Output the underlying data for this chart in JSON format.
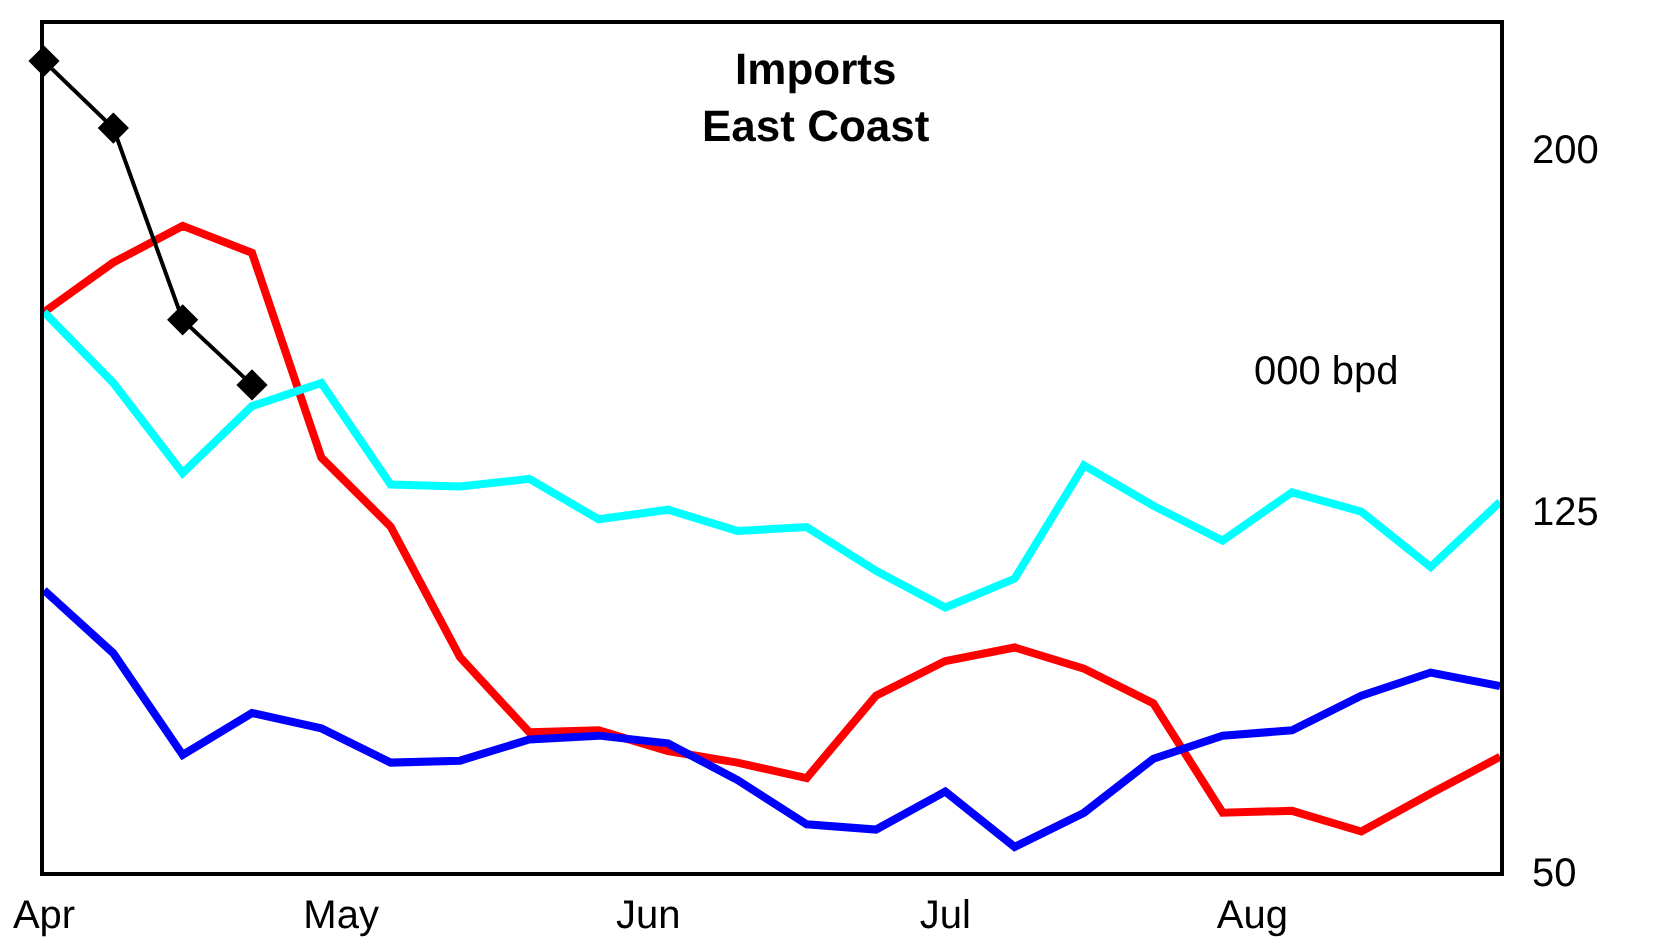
{
  "chart_data": {
    "type": "line",
    "title": "Imports\nEast Coast",
    "annotations": [
      "000 bpd"
    ],
    "x": [
      "--04-01",
      "--04-08",
      "--04-15",
      "--04-22",
      "--04-29",
      "--05-06",
      "--05-13",
      "--05-20",
      "--05-27",
      "--06-03",
      "--06-10",
      "--06-17",
      "--06-24",
      "--07-01",
      "--07-08",
      "--07-15",
      "--07-22",
      "--07-29",
      "--08-05",
      "--08-12",
      "--08-19",
      "--08-26"
    ],
    "xlim": [
      "--04-01",
      "--08-26"
    ],
    "xticks": [
      {
        "value": "--04-01",
        "label": "Apr"
      },
      {
        "value": "--05-01",
        "label": "May"
      },
      {
        "value": "--06-01",
        "label": "Jun"
      },
      {
        "value": "--07-01",
        "label": "Jul"
      },
      {
        "value": "--08-01",
        "label": "Aug"
      }
    ],
    "ylim": [
      50,
      226
    ],
    "yticks": [
      50,
      125,
      200
    ],
    "grid": false,
    "series": [
      {
        "color": "#ff0000",
        "marker": "none",
        "values": [
          166.2,
          176.5,
          184.1,
          178.5,
          136.0,
          121.7,
          94.6,
          79.0,
          79.4,
          75.1,
          72.7,
          69.5,
          86.6,
          93.8,
          96.6,
          92.2,
          85.0,
          62.3,
          62.7,
          58.4,
          66.3,
          73.9
        ]
      },
      {
        "color": "#00ffff",
        "marker": "none",
        "values": [
          166.2,
          151.5,
          132.8,
          146.7,
          151.5,
          130.4,
          130.0,
          131.6,
          123.2,
          125.2,
          120.8,
          121.6,
          112.5,
          104.9,
          110.9,
          134.4,
          126.0,
          118.8,
          128.8,
          124.8,
          113.3,
          126.8
        ]
      },
      {
        "color": "#0000ff",
        "marker": "none",
        "values": [
          108.5,
          95.4,
          74.3,
          83.0,
          79.8,
          72.7,
          73.1,
          77.5,
          78.3,
          76.7,
          69.1,
          59.9,
          58.8,
          66.7,
          55.2,
          62.3,
          73.5,
          78.3,
          79.4,
          86.6,
          91.4,
          88.6
        ]
      },
      {
        "color": "#000000",
        "marker": "diamond",
        "values": [
          218.3,
          204.4,
          164.6,
          151.1,
          null,
          null,
          null,
          null,
          null,
          null,
          null,
          null,
          null,
          null,
          null,
          null,
          null,
          null,
          null,
          null,
          null,
          null
        ]
      }
    ]
  }
}
